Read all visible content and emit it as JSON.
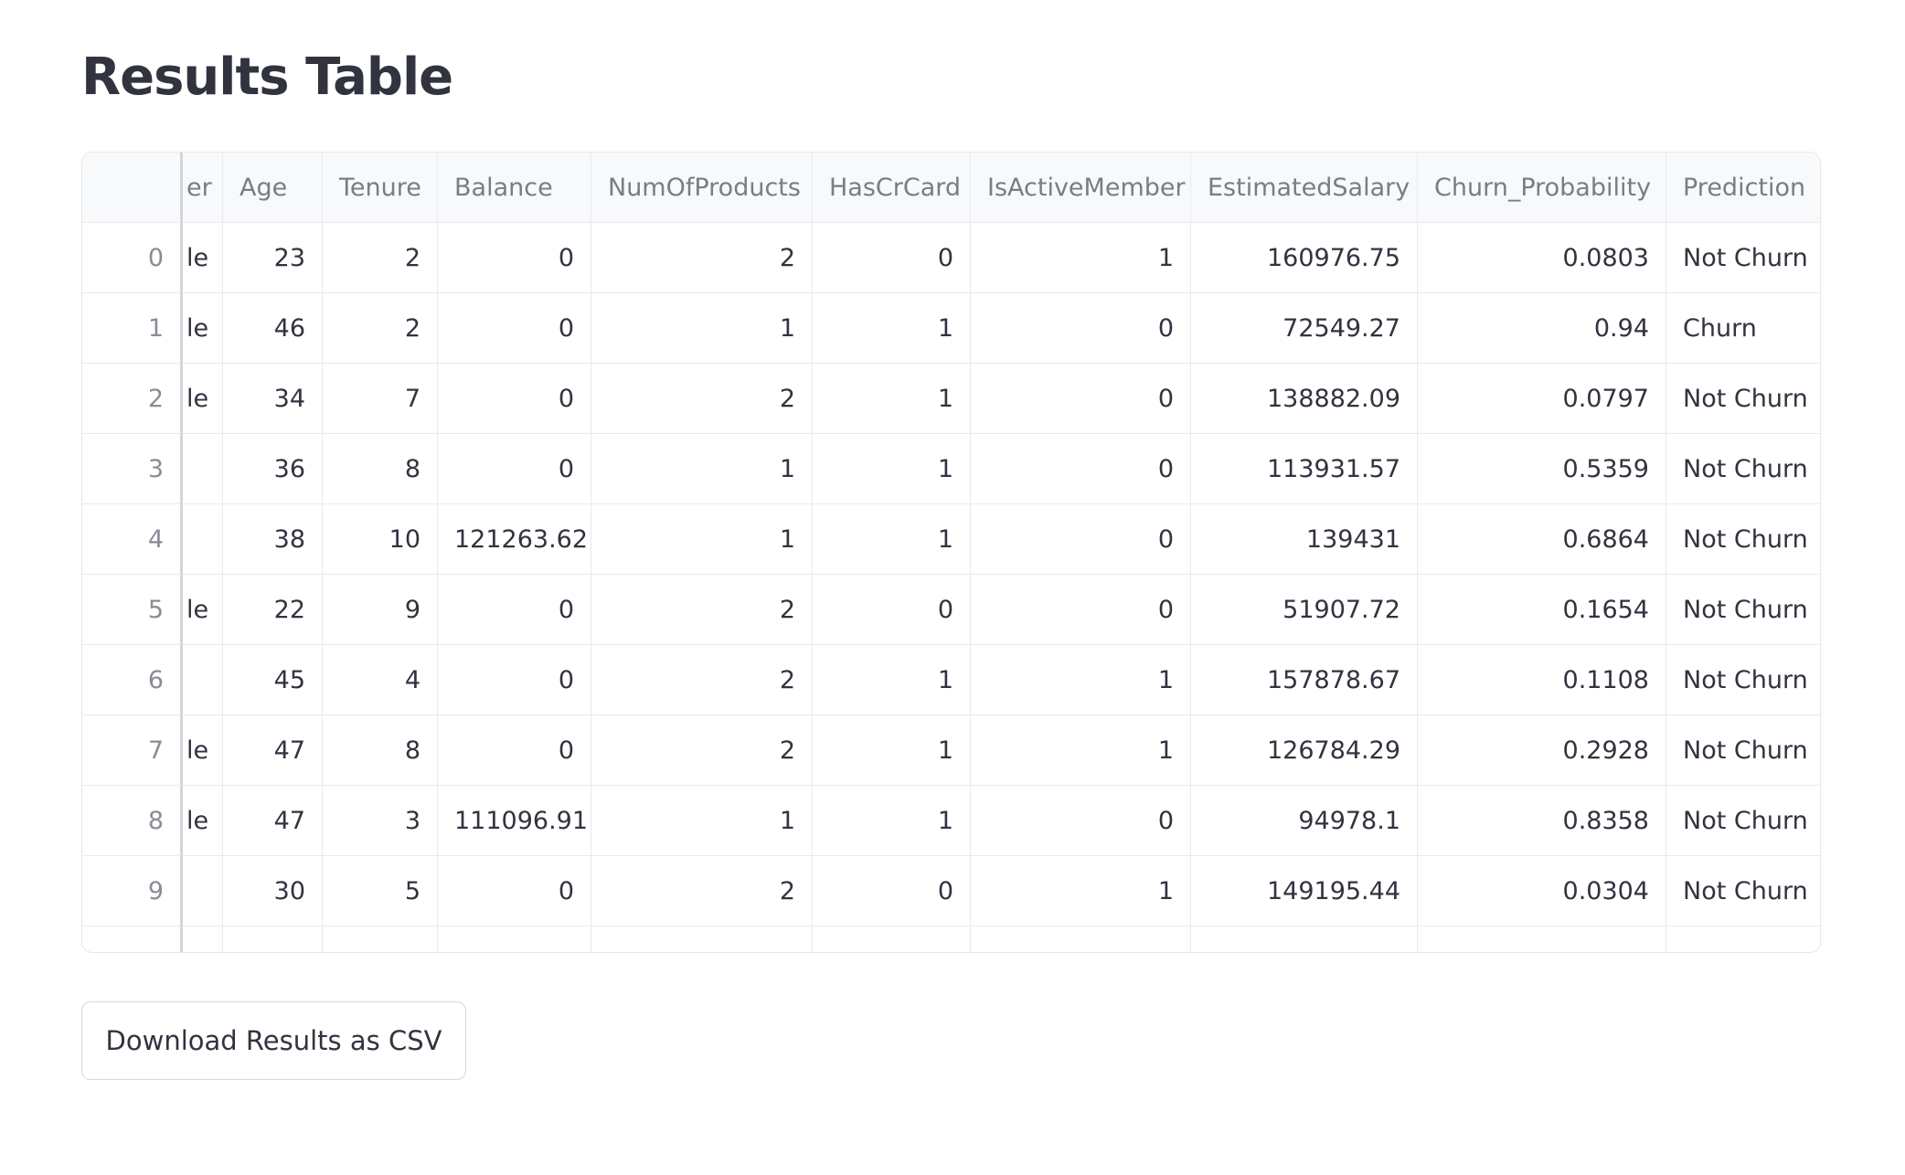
{
  "header": {
    "title": "Results Table"
  },
  "table": {
    "columns": [
      null,
      "er",
      "Age",
      "Tenure",
      "Balance",
      "NumOfProducts",
      "HasCrCard",
      "IsActiveMember",
      "EstimatedSalary",
      "Churn_Probability",
      "Prediction"
    ],
    "rows": [
      [
        0,
        "le",
        23,
        2,
        0,
        2,
        0,
        1,
        160976.75,
        0.0803,
        "Not Churn"
      ],
      [
        1,
        "le",
        46,
        2,
        0,
        1,
        1,
        0,
        72549.27,
        0.94,
        "Churn"
      ],
      [
        2,
        "le",
        34,
        7,
        0,
        2,
        1,
        0,
        138882.09,
        0.0797,
        "Not Churn"
      ],
      [
        3,
        null,
        36,
        8,
        0,
        1,
        1,
        0,
        113931.57,
        0.5359,
        "Not Churn"
      ],
      [
        4,
        null,
        38,
        10,
        121263.62,
        1,
        1,
        0,
        139431,
        0.6864,
        "Not Churn"
      ],
      [
        5,
        "le",
        22,
        9,
        0,
        2,
        0,
        0,
        51907.72,
        0.1654,
        "Not Churn"
      ],
      [
        6,
        null,
        45,
        4,
        0,
        2,
        1,
        1,
        157878.67,
        0.1108,
        "Not Churn"
      ],
      [
        7,
        "le",
        47,
        8,
        0,
        2,
        1,
        1,
        126784.29,
        0.2928,
        "Not Churn"
      ],
      [
        8,
        "le",
        47,
        3,
        111096.91,
        1,
        1,
        0,
        94978.1,
        0.8358,
        "Not Churn"
      ],
      [
        9,
        null,
        30,
        5,
        0,
        2,
        0,
        1,
        149195.44,
        0.0304,
        "Not Churn"
      ]
    ]
  },
  "button": {
    "label": "Download Results as CSV"
  }
}
